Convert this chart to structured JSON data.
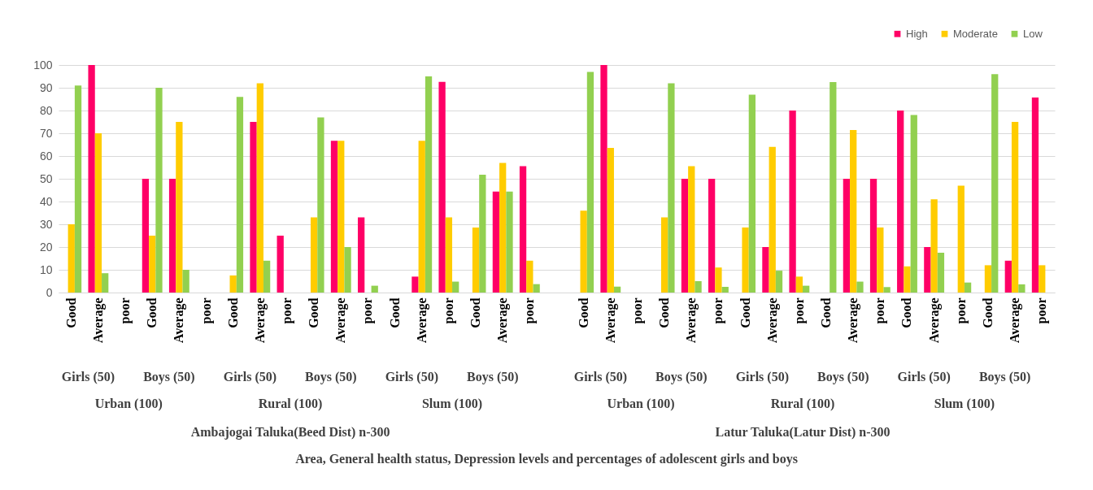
{
  "chart_data": {
    "type": "bar",
    "categories": [
      "Good",
      "Average",
      "poor",
      "Good",
      "Average",
      "poor",
      "Good",
      "Average",
      "poor",
      "Good",
      "Average",
      "poor",
      "Good",
      "Average",
      "poor",
      "Good",
      "Average",
      "poor",
      null,
      "Good",
      "Average",
      "poor",
      "Good",
      "Average",
      "poor",
      "Good",
      "Average",
      "poor",
      "Good",
      "Average",
      "poor",
      "Good",
      "Average",
      "poor",
      "Good",
      "Average",
      "poor"
    ],
    "series": [
      {
        "name": "High",
        "color": "#ff0066",
        "values": [
          0,
          100,
          0,
          50,
          50,
          0,
          0,
          75,
          25,
          0,
          66.7,
          33,
          0,
          7,
          92.6,
          0,
          44.4,
          55.5,
          null,
          0,
          100,
          0,
          0,
          50,
          50,
          0,
          20,
          80,
          0,
          50,
          50,
          80,
          20,
          0,
          0,
          14,
          85.7
        ]
      },
      {
        "name": "Moderate",
        "color": "#ffcc00",
        "values": [
          30,
          70,
          0,
          25,
          75,
          0,
          7.5,
          92,
          0,
          33,
          66.7,
          0,
          0,
          66.7,
          33,
          28.6,
          57,
          14,
          null,
          36,
          63.6,
          0,
          33,
          55.5,
          11,
          28.6,
          64,
          7,
          0,
          71.4,
          28.6,
          11.5,
          41,
          47,
          12,
          75,
          12
        ]
      },
      {
        "name": "Low",
        "color": "#92d050",
        "values": [
          91,
          8.5,
          0,
          90,
          10,
          0,
          86,
          14,
          0,
          77,
          20,
          3,
          0,
          95,
          4.8,
          51.8,
          44.4,
          3.7,
          null,
          97,
          2.6,
          0,
          92,
          5,
          2.5,
          87,
          9.6,
          3,
          92.5,
          4.8,
          2.4,
          78,
          17.5,
          4.4,
          96,
          3.6,
          0
        ]
      }
    ],
    "annotations": [
      "Girls (50)",
      "Boys (50)",
      "Girls (50)",
      "Boys (50)",
      "Girls (50)",
      "Boys (50)",
      "Girls (50)",
      "Boys (50)",
      "Girls (50)",
      "Boys (50)",
      "Girls (50)",
      "Boys (50)",
      "Urban (100)",
      "Rural (100)",
      "Slum (100)",
      "Urban (100)",
      "Rural (100)",
      "Slum (100)",
      "Ambajogai Taluka(Beed Dist) n-300",
      "Latur Taluka(Latur Dist) n-300",
      "Area, General health status, Depression levels and percentages of adolescent girls and boys"
    ],
    "ylim": [
      0,
      100
    ],
    "yticks": [
      0,
      10,
      20,
      30,
      40,
      50,
      60,
      70,
      80,
      90,
      100
    ],
    "grid": "y",
    "legend": "top right"
  }
}
